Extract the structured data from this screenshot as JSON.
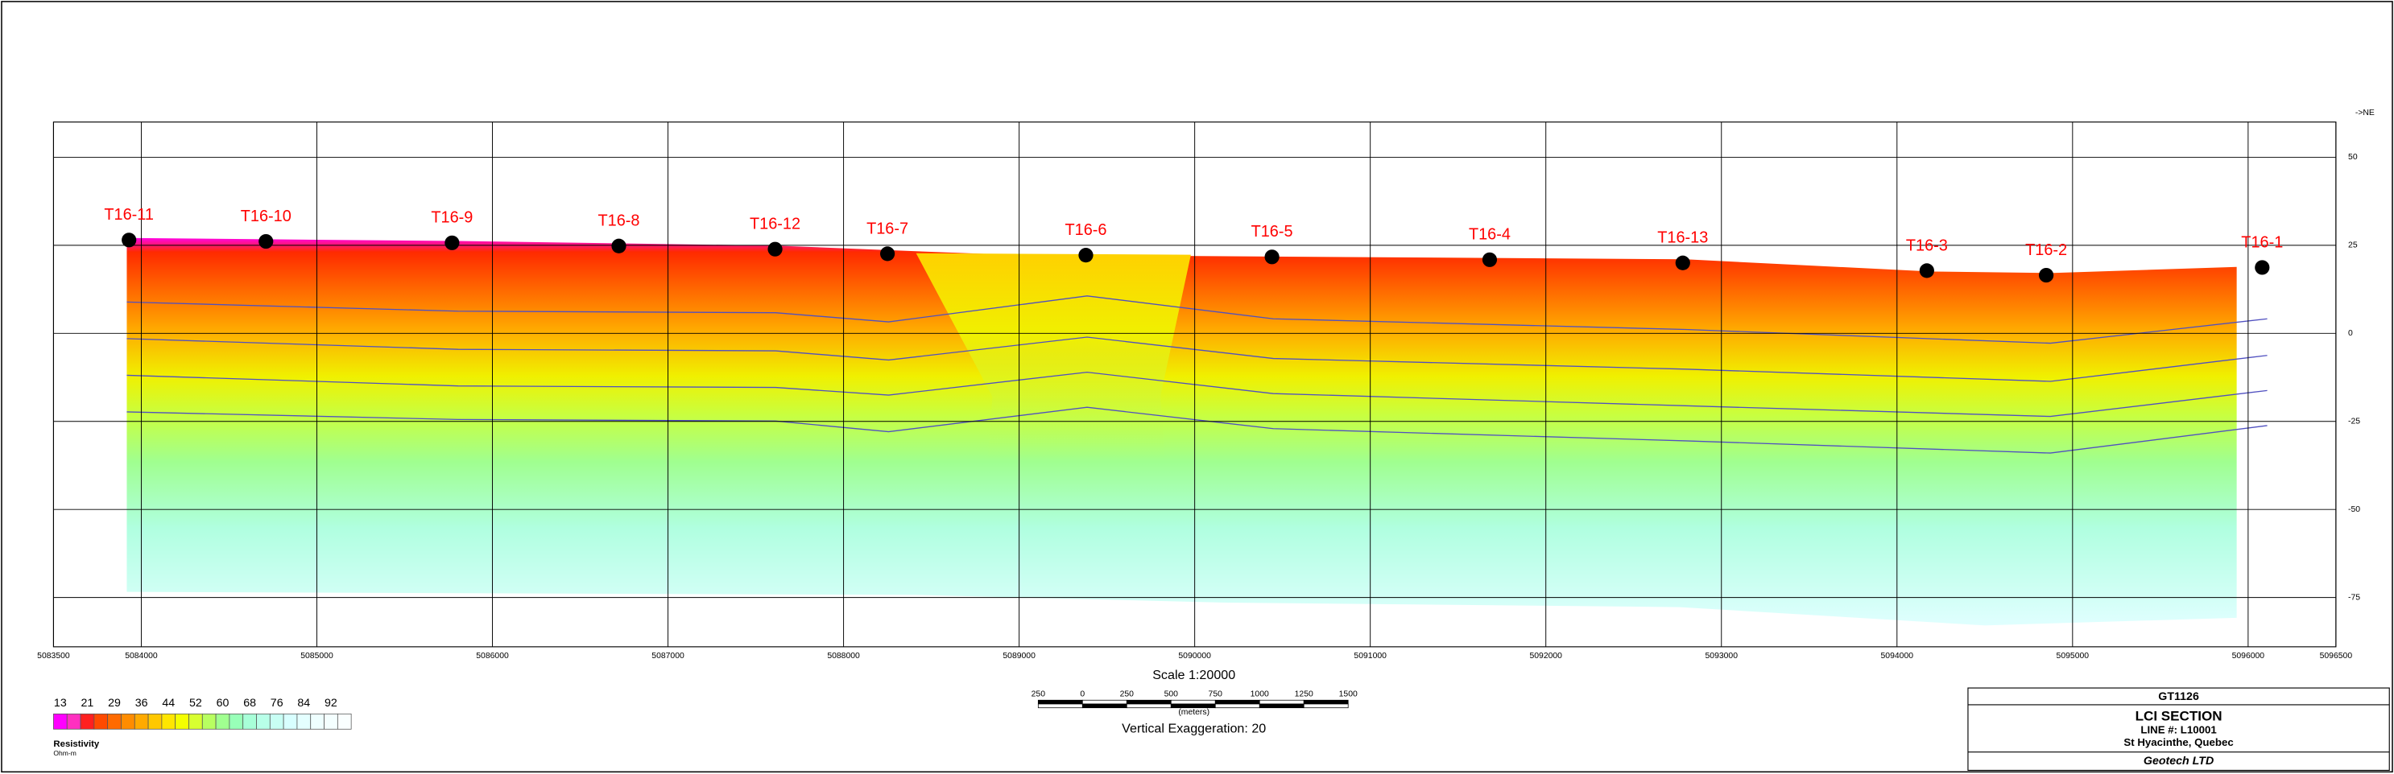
{
  "direction": "->NE",
  "chart_data": {
    "type": "scatter",
    "labels": [
      "T16-11",
      "T16-10",
      "T16-9",
      "T16-8",
      "T16-12",
      "T16-7",
      "T16-6",
      "T16-5",
      "T16-4",
      "T16-13",
      "T16-3",
      "T16-2",
      "T16-1"
    ],
    "x": [
      5083930,
      5084710,
      5085770,
      5086720,
      5087610,
      5088250,
      5089380,
      5090440,
      5091680,
      5092780,
      5094170,
      5094850,
      5096080
    ],
    "y": [
      26.5,
      26.1,
      25.7,
      24.8,
      23.9,
      22.6,
      22.2,
      21.7,
      20.9,
      20.0,
      17.8,
      16.5,
      18.7
    ],
    "color": "#000000",
    "label_color": "#ff0000",
    "xlim": [
      5083500,
      5096500
    ],
    "xticks": [
      5083500,
      5084000,
      5085000,
      5086000,
      5087000,
      5088000,
      5089000,
      5090000,
      5091000,
      5092000,
      5093000,
      5094000,
      5095000,
      5096000,
      5096500
    ],
    "ylim": [
      -89,
      60
    ],
    "yticks": [
      50,
      25,
      0,
      -25,
      -50,
      -75
    ],
    "grid": true
  },
  "legend": {
    "ticks": [
      13,
      21,
      29,
      36,
      44,
      52,
      60,
      68,
      76,
      84,
      92
    ],
    "colors": [
      "#ff00ff",
      "#ff30c0",
      "#ff2020",
      "#ff4a00",
      "#ff6a00",
      "#ff8c00",
      "#ffaa00",
      "#ffc800",
      "#ffe600",
      "#f4ff00",
      "#d8ff30",
      "#b8ff60",
      "#a0ff90",
      "#98ffb8",
      "#a8ffd8",
      "#b8ffe8",
      "#c8fff4",
      "#d8ffff",
      "#e4ffff",
      "#eeffff",
      "#f4ffff",
      "#fafffff0"
    ],
    "title": "Resistivity",
    "units": "Ohm-m"
  },
  "scale": {
    "title": "Scale 1:20000",
    "labels": [
      250,
      0,
      250,
      500,
      750,
      1000,
      1250,
      1500
    ],
    "units": "(meters)",
    "exaggeration": "Vertical Exaggeration: 20"
  },
  "title_block": {
    "id": "GT1126",
    "title": "LCI SECTION",
    "line": "LINE #:  L10001",
    "location": "St Hyacinthe, Quebec",
    "company": "Geotech LTD"
  }
}
